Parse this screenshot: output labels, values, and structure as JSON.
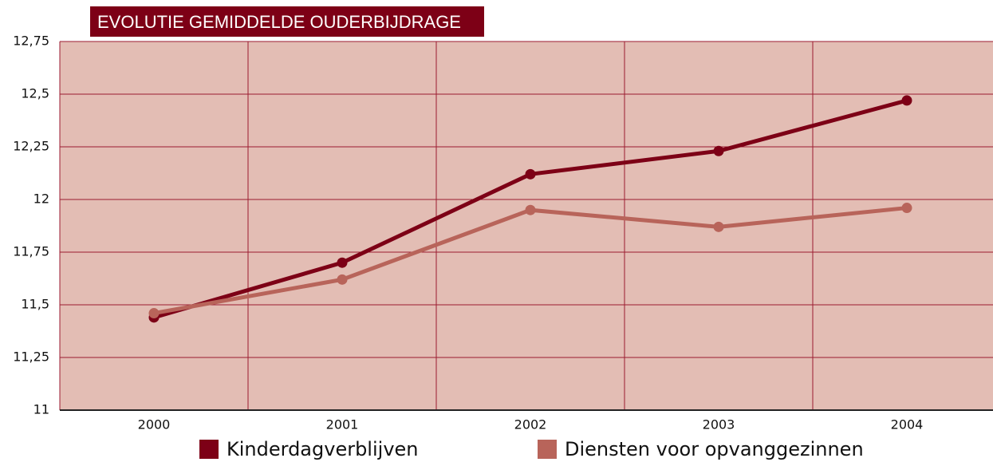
{
  "chart_data": {
    "type": "line",
    "title": "EVOLUTIE GEMIDDELDE OUDERBIJDRAGE",
    "categories": [
      "2000",
      "2001",
      "2002",
      "2003",
      "2004"
    ],
    "series": [
      {
        "name": "Kinderdagverblijven",
        "color": "#7d0016",
        "values": [
          11.44,
          11.7,
          12.12,
          12.23,
          12.47
        ]
      },
      {
        "name": "Diensten voor opvanggezinnen",
        "color": "#b8645a",
        "values": [
          11.46,
          11.62,
          11.95,
          11.87,
          11.96
        ]
      }
    ],
    "ylim": [
      11,
      12.75
    ],
    "yticks": [
      11,
      {
        "value": 11.25,
        "label": "11,25"
      },
      {
        "value": 11.5,
        "label": "11,5"
      },
      {
        "value": 11.75,
        "label": "11,75"
      },
      12,
      {
        "value": 12.25,
        "label": "12,25"
      },
      {
        "value": 12.5,
        "label": "12,5"
      },
      {
        "value": 12.75,
        "label": "12,75"
      }
    ],
    "grid": true,
    "legend": "bottom"
  }
}
